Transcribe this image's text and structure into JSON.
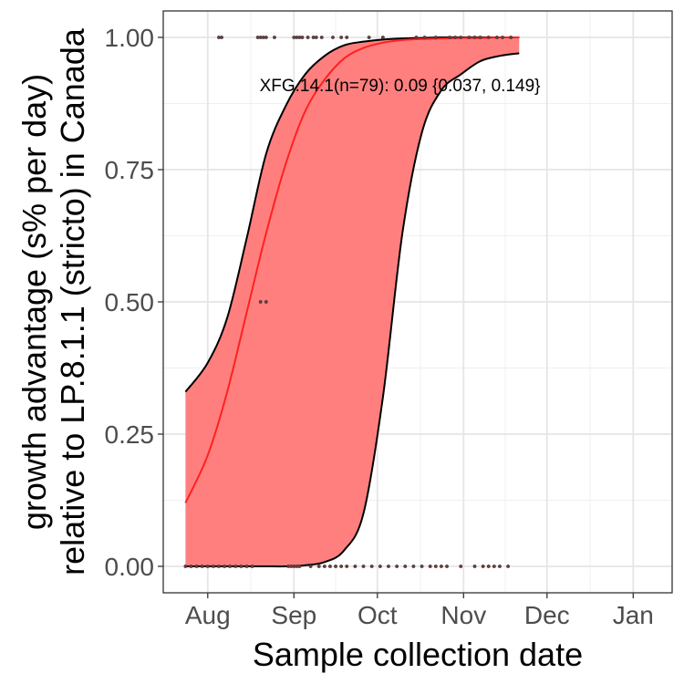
{
  "chart_data": {
    "type": "line",
    "title": "",
    "xlabel": "Sample collection date",
    "ylabel_lines": [
      "growth advantage (s% per day)",
      "relative to LP.8.1.1 (stricto) in Canada"
    ],
    "x_ticks": [
      "Aug",
      "Sep",
      "Oct",
      "Nov",
      "Dec",
      "Jan"
    ],
    "x_tick_dates": [
      "2025-08-01",
      "2025-09-01",
      "2025-10-01",
      "2025-11-01",
      "2025-12-01",
      "2026-01-01"
    ],
    "y_ticks": [
      "0.00",
      "0.25",
      "0.50",
      "0.75",
      "1.00"
    ],
    "y_tick_values": [
      0,
      0.25,
      0.5,
      0.75,
      1.0
    ],
    "xlim": [
      "2025-07-16",
      "2026-01-15"
    ],
    "ylim": [
      -0.05,
      1.05
    ],
    "grid": true,
    "annotation": "XFG.14.1(n=79): 0.09 {0.037, 0.149}",
    "annotation_at": {
      "x": "2025-09-26",
      "y": 0.91
    },
    "series": [
      {
        "name": "XFG.14.1",
        "x": [
          "2025-07-24",
          "2025-08-01",
          "2025-08-08",
          "2025-08-15",
          "2025-08-22",
          "2025-08-29",
          "2025-09-05",
          "2025-09-12",
          "2025-09-19",
          "2025-09-26",
          "2025-10-03",
          "2025-10-10",
          "2025-10-17",
          "2025-10-24",
          "2025-10-31",
          "2025-11-07",
          "2025-11-14",
          "2025-11-21"
        ],
        "fit": [
          0.12,
          0.21,
          0.33,
          0.48,
          0.63,
          0.76,
          0.86,
          0.92,
          0.96,
          0.98,
          0.99,
          0.995,
          0.997,
          0.998,
          0.999,
          0.999,
          1.0,
          1.0
        ],
        "lower": [
          0.0,
          0.0,
          0.0,
          0.0,
          0.0,
          0.0,
          0.002,
          0.008,
          0.03,
          0.1,
          0.32,
          0.63,
          0.82,
          0.9,
          0.93,
          0.955,
          0.965,
          0.97
        ],
        "upper": [
          0.33,
          0.385,
          0.47,
          0.62,
          0.78,
          0.87,
          0.93,
          0.965,
          0.985,
          0.992,
          0.996,
          0.998,
          0.999,
          1.0,
          1.0,
          1.0,
          1.0,
          1.0
        ],
        "color": "#ff2020",
        "band_color": "#ff7f7f"
      }
    ],
    "points": [
      {
        "x": "2025-08-05",
        "y": 1
      },
      {
        "x": "2025-08-06",
        "y": 1
      },
      {
        "x": "2025-08-19",
        "y": 1
      },
      {
        "x": "2025-08-20",
        "y": 1
      },
      {
        "x": "2025-08-21",
        "y": 1
      },
      {
        "x": "2025-08-22",
        "y": 1
      },
      {
        "x": "2025-08-25",
        "y": 1
      },
      {
        "x": "2025-09-01",
        "y": 1
      },
      {
        "x": "2025-09-02",
        "y": 1
      },
      {
        "x": "2025-09-03",
        "y": 1
      },
      {
        "x": "2025-09-04",
        "y": 1
      },
      {
        "x": "2025-09-06",
        "y": 1
      },
      {
        "x": "2025-09-08",
        "y": 1
      },
      {
        "x": "2025-09-09",
        "y": 1
      },
      {
        "x": "2025-09-11",
        "y": 1
      },
      {
        "x": "2025-09-15",
        "y": 1
      },
      {
        "x": "2025-09-18",
        "y": 1
      },
      {
        "x": "2025-09-20",
        "y": 1
      },
      {
        "x": "2025-09-28",
        "y": 1
      },
      {
        "x": "2025-10-03",
        "y": 1
      },
      {
        "x": "2025-10-15",
        "y": 1
      },
      {
        "x": "2025-10-18",
        "y": 1
      },
      {
        "x": "2025-10-22",
        "y": 1
      },
      {
        "x": "2025-10-27",
        "y": 1
      },
      {
        "x": "2025-10-29",
        "y": 1
      },
      {
        "x": "2025-10-31",
        "y": 1
      },
      {
        "x": "2025-11-03",
        "y": 1
      },
      {
        "x": "2025-11-05",
        "y": 1
      },
      {
        "x": "2025-11-07",
        "y": 1
      },
      {
        "x": "2025-11-10",
        "y": 1
      },
      {
        "x": "2025-11-13",
        "y": 1
      },
      {
        "x": "2025-11-15",
        "y": 1
      },
      {
        "x": "2025-11-18",
        "y": 1
      },
      {
        "x": "2025-08-20",
        "y": 0.5
      },
      {
        "x": "2025-08-22",
        "y": 0.5
      },
      {
        "x": "2025-07-24",
        "y": 0
      },
      {
        "x": "2025-07-26",
        "y": 0
      },
      {
        "x": "2025-07-28",
        "y": 0
      },
      {
        "x": "2025-07-30",
        "y": 0
      },
      {
        "x": "2025-08-01",
        "y": 0
      },
      {
        "x": "2025-08-03",
        "y": 0
      },
      {
        "x": "2025-08-05",
        "y": 0
      },
      {
        "x": "2025-08-07",
        "y": 0
      },
      {
        "x": "2025-08-09",
        "y": 0
      },
      {
        "x": "2025-08-11",
        "y": 0
      },
      {
        "x": "2025-08-13",
        "y": 0
      },
      {
        "x": "2025-08-15",
        "y": 0
      },
      {
        "x": "2025-08-17",
        "y": 0
      },
      {
        "x": "2025-08-30",
        "y": 0
      },
      {
        "x": "2025-08-31",
        "y": 0
      },
      {
        "x": "2025-09-01",
        "y": 0
      },
      {
        "x": "2025-09-02",
        "y": 0
      },
      {
        "x": "2025-09-03",
        "y": 0
      },
      {
        "x": "2025-09-07",
        "y": 0
      },
      {
        "x": "2025-09-10",
        "y": 0
      },
      {
        "x": "2025-09-12",
        "y": 0
      },
      {
        "x": "2025-09-14",
        "y": 0
      },
      {
        "x": "2025-09-16",
        "y": 0
      },
      {
        "x": "2025-09-18",
        "y": 0
      },
      {
        "x": "2025-09-20",
        "y": 0
      },
      {
        "x": "2025-09-23",
        "y": 0
      },
      {
        "x": "2025-09-26",
        "y": 0
      },
      {
        "x": "2025-09-29",
        "y": 0
      },
      {
        "x": "2025-10-02",
        "y": 0
      },
      {
        "x": "2025-10-05",
        "y": 0
      },
      {
        "x": "2025-10-08",
        "y": 0
      },
      {
        "x": "2025-10-11",
        "y": 0
      },
      {
        "x": "2025-10-14",
        "y": 0
      },
      {
        "x": "2025-10-17",
        "y": 0
      },
      {
        "x": "2025-10-20",
        "y": 0
      },
      {
        "x": "2025-10-22",
        "y": 0
      },
      {
        "x": "2025-10-24",
        "y": 0
      },
      {
        "x": "2025-10-26",
        "y": 0
      },
      {
        "x": "2025-10-31",
        "y": 0
      },
      {
        "x": "2025-11-05",
        "y": 0
      },
      {
        "x": "2025-11-08",
        "y": 0
      },
      {
        "x": "2025-11-10",
        "y": 0
      },
      {
        "x": "2025-11-12",
        "y": 0
      },
      {
        "x": "2025-11-14",
        "y": 0
      },
      {
        "x": "2025-11-17",
        "y": 0
      }
    ]
  }
}
